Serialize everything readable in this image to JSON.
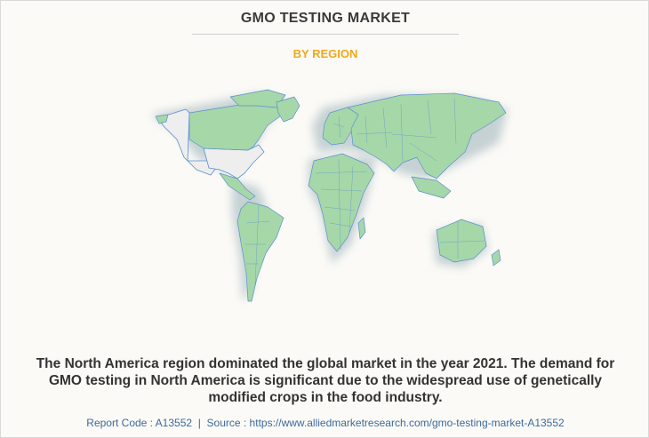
{
  "header": {
    "title": "GMO TESTING MARKET",
    "subtitle": "BY REGION"
  },
  "map": {
    "highlighted_region": "North America",
    "colors": {
      "highlight": "#eeeeee",
      "land": "#a6d7a8",
      "border": "#5b8fd0"
    }
  },
  "description": "The North America region dominated the global market in the year 2021. The demand for GMO testing in North America is significant due to the widespread use of genetically modified crops in the food industry.",
  "footer": {
    "report_code": "Report Code : A13552",
    "separator": "|",
    "source": "Source : https://www.alliedmarketresearch.com/gmo-testing-market-A13552"
  }
}
